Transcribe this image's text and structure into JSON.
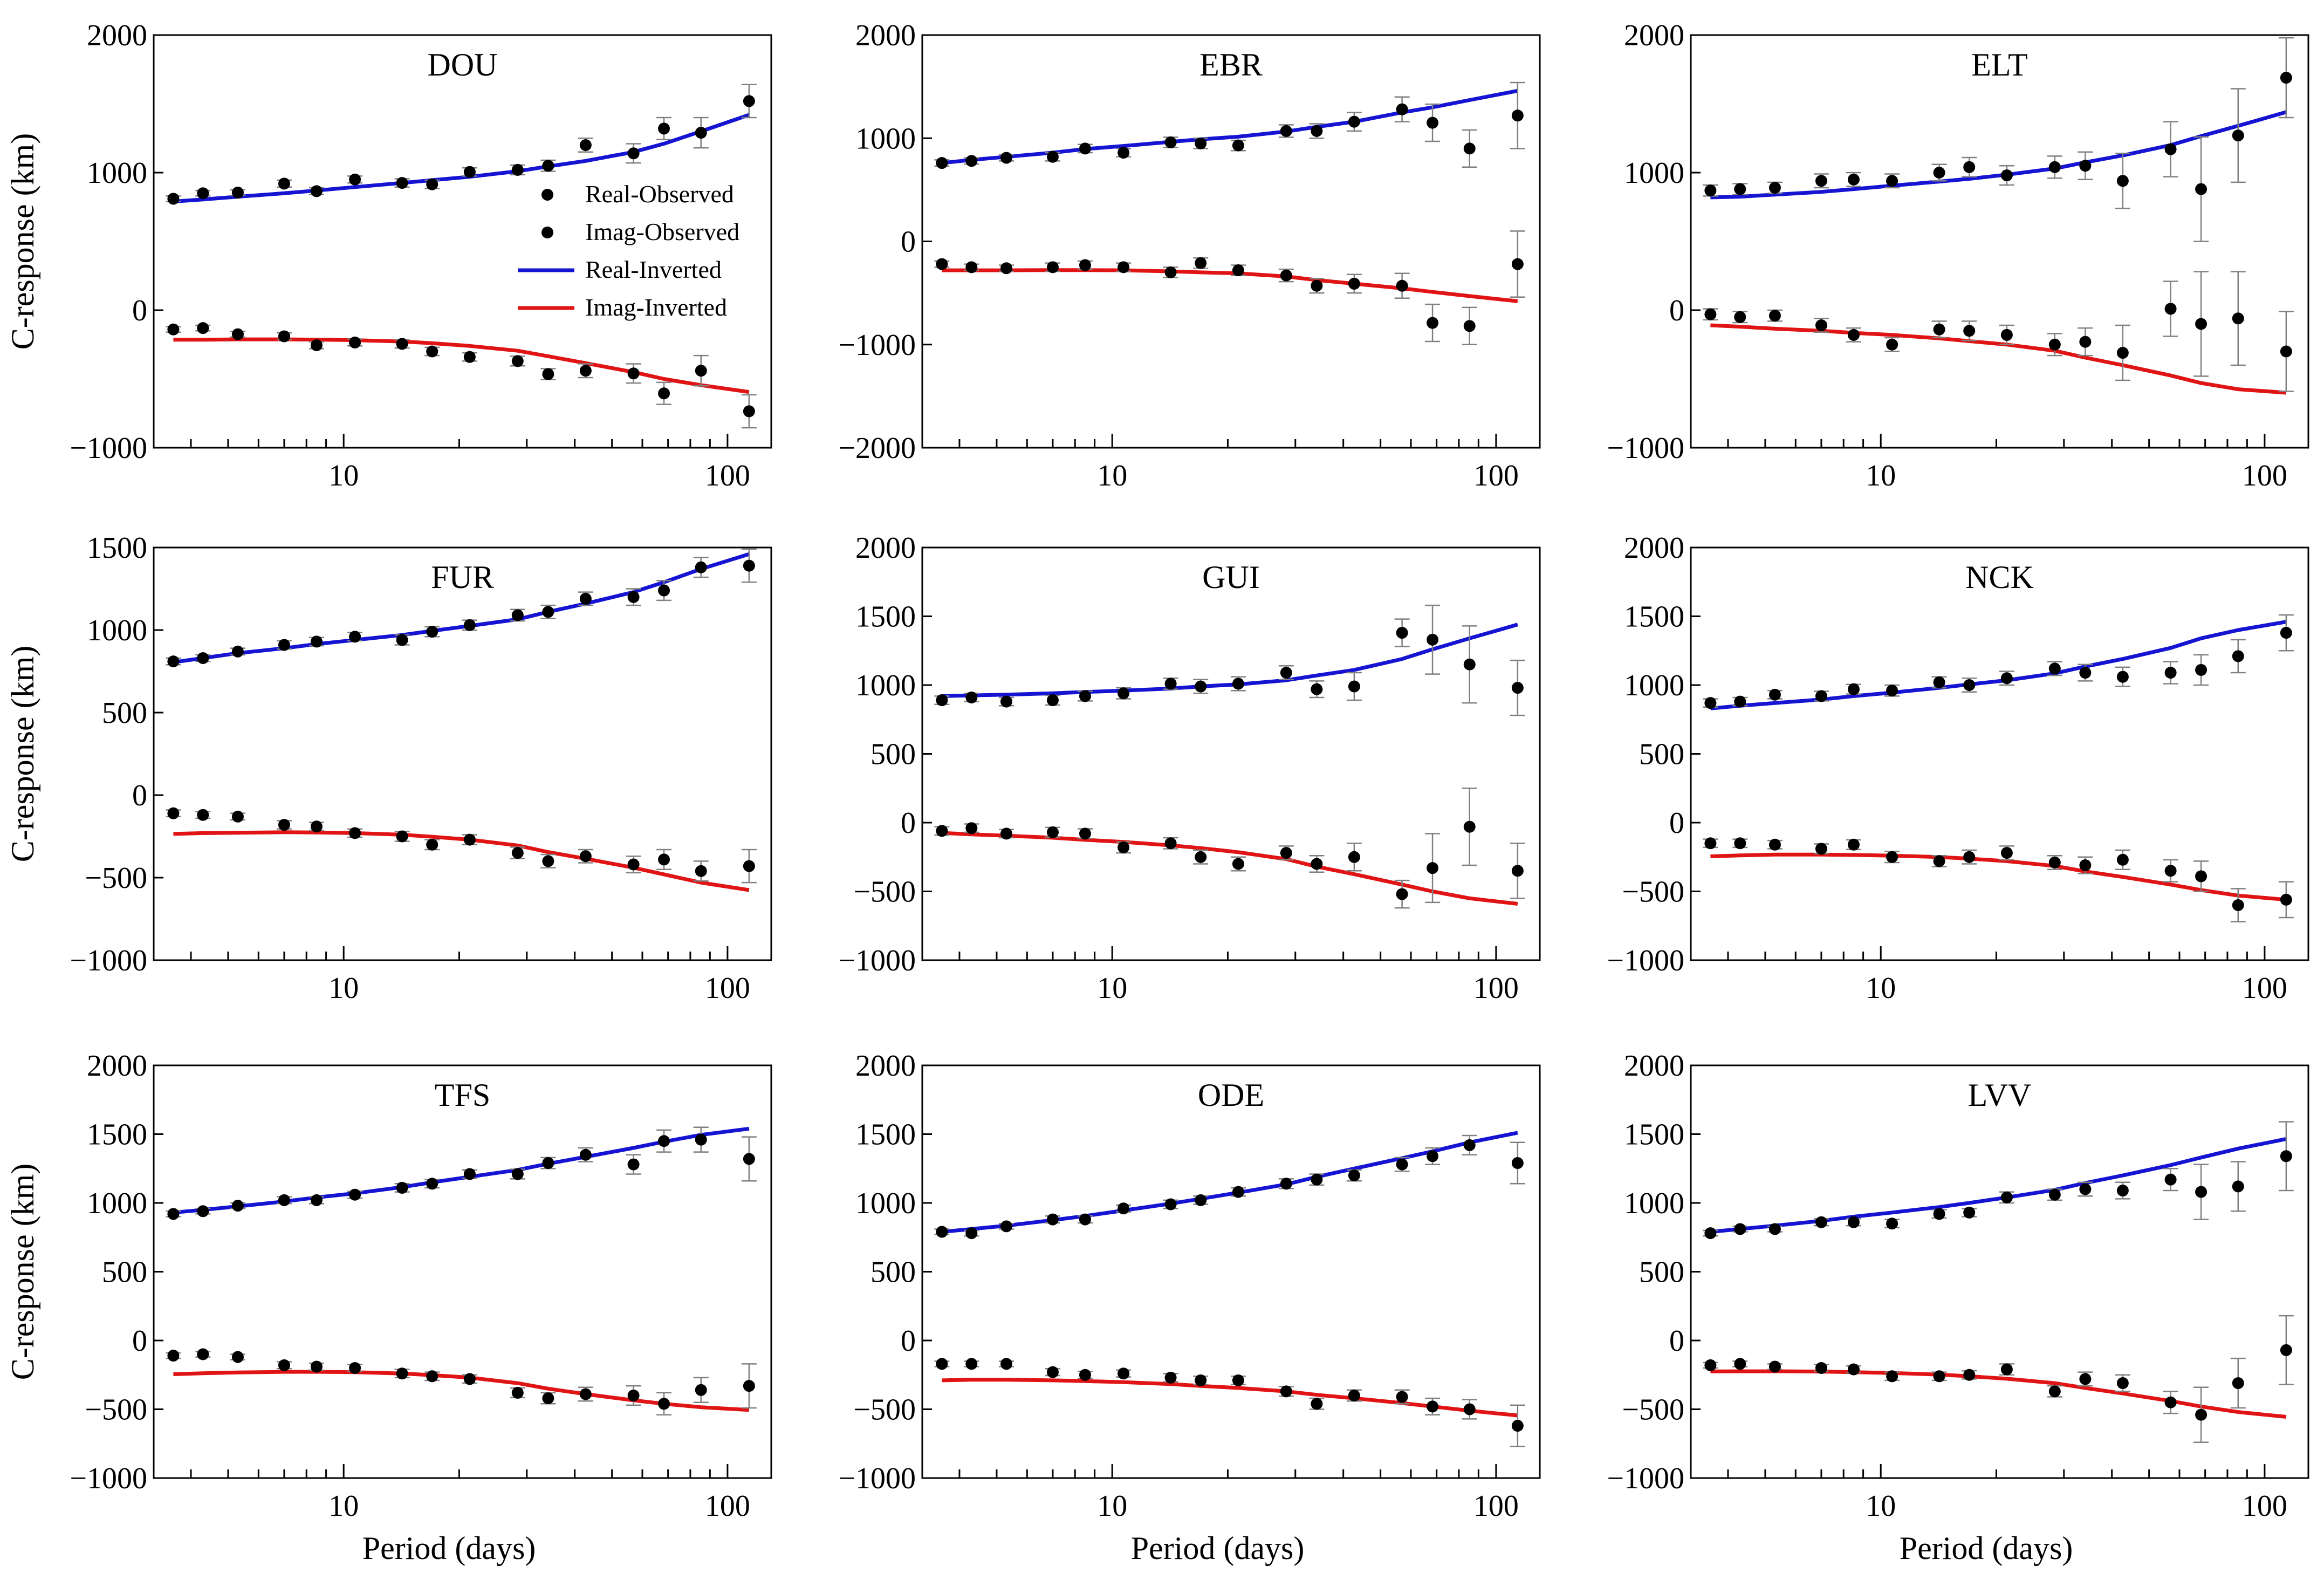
{
  "chart_data": {
    "type": "line",
    "xscale": "log",
    "xlim": [
      3.2,
      130
    ],
    "xticks": [
      10,
      100
    ],
    "xtick_labels": [
      "10",
      "100"
    ],
    "xlabel": "Period (days)",
    "ylabel": "C-response (km)",
    "periods": [
      3.6,
      4.3,
      5.3,
      7.0,
      8.5,
      10.7,
      14.2,
      17.0,
      21.3,
      28.4,
      34.1,
      42.7,
      56.9,
      68.3,
      85.3,
      113.8
    ],
    "legend": {
      "real_observed": "Real-Observed",
      "imag_observed": "Imag-Observed",
      "real_inverted": "Real-Inverted",
      "imag_inverted": "Imag-Inverted"
    },
    "colors": {
      "real_inverted": "#1414d2",
      "imag_inverted": "#e01414",
      "observed": "#000000",
      "errorbar": "#808080"
    },
    "panels": [
      {
        "station": "DOU",
        "ylim": [
          -1000,
          2000
        ],
        "yticks": [
          -1000,
          0,
          1000,
          2000
        ],
        "ytick_labels": [
          "−1000",
          "0",
          "1000",
          "2000"
        ],
        "real_obs": [
          810,
          850,
          855,
          920,
          865,
          950,
          925,
          915,
          1005,
          1020,
          1050,
          1200,
          1140,
          1320,
          1290,
          1520
        ],
        "real_err": [
          20,
          20,
          20,
          25,
          25,
          25,
          30,
          30,
          30,
          35,
          40,
          50,
          70,
          80,
          110,
          120
        ],
        "imag_obs": [
          -140,
          -130,
          -175,
          -190,
          -255,
          -235,
          -245,
          -300,
          -340,
          -370,
          -465,
          -440,
          -460,
          -605,
          -440,
          -735
        ],
        "imag_err": [
          20,
          20,
          20,
          25,
          25,
          25,
          30,
          30,
          30,
          35,
          40,
          50,
          70,
          80,
          110,
          120
        ],
        "real_inv": [
          790,
          805,
          825,
          850,
          870,
          895,
          925,
          945,
          970,
          1010,
          1045,
          1085,
          1150,
          1210,
          1300,
          1420
        ],
        "imag_inv": [
          -215,
          -215,
          -212,
          -212,
          -214,
          -218,
          -228,
          -240,
          -260,
          -295,
          -335,
          -385,
          -450,
          -500,
          -545,
          -595
        ]
      },
      {
        "station": "EBR",
        "ylim": [
          -2000,
          2000
        ],
        "yticks": [
          -2000,
          -1000,
          0,
          1000,
          2000
        ],
        "ytick_labels": [
          "−2000",
          "−1000",
          "0",
          "1000",
          "2000"
        ],
        "real_obs": [
          760,
          780,
          810,
          820,
          900,
          860,
          960,
          950,
          930,
          1070,
          1070,
          1160,
          1280,
          1150,
          900,
          1220
        ],
        "real_err": [
          30,
          30,
          30,
          40,
          40,
          40,
          50,
          50,
          50,
          60,
          70,
          90,
          120,
          180,
          180,
          320
        ],
        "imag_obs": [
          -220,
          -250,
          -260,
          -250,
          -230,
          -250,
          -300,
          -210,
          -280,
          -330,
          -430,
          -410,
          -430,
          -790,
          -820,
          -220
        ],
        "imag_err": [
          30,
          30,
          30,
          40,
          40,
          40,
          50,
          50,
          50,
          60,
          70,
          90,
          120,
          180,
          180,
          320
        ],
        "real_inv": [
          760,
          790,
          820,
          860,
          895,
          925,
          965,
          990,
          1015,
          1065,
          1110,
          1160,
          1250,
          1300,
          1370,
          1460
        ],
        "imag_inv": [
          -280,
          -280,
          -280,
          -278,
          -278,
          -280,
          -290,
          -300,
          -310,
          -340,
          -375,
          -410,
          -455,
          -490,
          -530,
          -580
        ]
      },
      {
        "station": "ELT",
        "ylim": [
          -1000,
          2000
        ],
        "yticks": [
          -1000,
          0,
          1000,
          2000
        ],
        "ytick_labels": [
          "−1000",
          "0",
          "1000",
          "2000"
        ],
        "real_obs": [
          870,
          880,
          890,
          940,
          950,
          940,
          1000,
          1040,
          980,
          1040,
          1050,
          940,
          1170,
          880,
          1270,
          1690
        ],
        "real_err": [
          40,
          40,
          40,
          50,
          50,
          50,
          60,
          70,
          70,
          80,
          100,
          200,
          200,
          380,
          340,
          290
        ],
        "imag_obs": [
          -30,
          -50,
          -40,
          -110,
          -180,
          -250,
          -140,
          -150,
          -180,
          -250,
          -230,
          -310,
          10,
          -100,
          -60,
          -300
        ],
        "imag_err": [
          40,
          40,
          40,
          50,
          50,
          50,
          60,
          70,
          70,
          80,
          100,
          200,
          200,
          380,
          340,
          290
        ],
        "real_inv": [
          820,
          825,
          840,
          860,
          880,
          905,
          935,
          955,
          985,
          1030,
          1075,
          1125,
          1200,
          1265,
          1340,
          1440
        ],
        "imag_inv": [
          -110,
          -120,
          -135,
          -150,
          -165,
          -180,
          -205,
          -225,
          -250,
          -295,
          -345,
          -400,
          -475,
          -530,
          -575,
          -600
        ]
      },
      {
        "station": "FUR",
        "ylim": [
          -1000,
          1500
        ],
        "yticks": [
          -1000,
          -500,
          0,
          500,
          1000,
          1500
        ],
        "ytick_labels": [
          "−1000",
          "−500",
          "0",
          "500",
          "1000",
          "1500"
        ],
        "real_obs": [
          810,
          830,
          870,
          910,
          930,
          960,
          940,
          990,
          1030,
          1090,
          1110,
          1190,
          1200,
          1240,
          1380,
          1390
        ],
        "real_err": [
          20,
          20,
          20,
          25,
          25,
          25,
          30,
          30,
          30,
          35,
          40,
          40,
          50,
          60,
          60,
          100
        ],
        "imag_obs": [
          -110,
          -120,
          -130,
          -180,
          -190,
          -230,
          -250,
          -300,
          -270,
          -350,
          -400,
          -370,
          -420,
          -390,
          -460,
          -430
        ],
        "imag_err": [
          20,
          20,
          20,
          25,
          25,
          25,
          30,
          30,
          30,
          35,
          40,
          40,
          50,
          60,
          60,
          100
        ],
        "real_inv": [
          805,
          830,
          860,
          890,
          915,
          940,
          970,
          995,
          1025,
          1065,
          1110,
          1160,
          1230,
          1290,
          1370,
          1460
        ],
        "imag_inv": [
          -235,
          -230,
          -228,
          -225,
          -226,
          -230,
          -240,
          -252,
          -270,
          -305,
          -345,
          -385,
          -440,
          -480,
          -530,
          -575
        ]
      },
      {
        "station": "GUI",
        "ylim": [
          -1000,
          2000
        ],
        "yticks": [
          -1000,
          -500,
          0,
          500,
          1000,
          1500,
          2000
        ],
        "ytick_labels": [
          "−1000",
          "−500",
          "0",
          "500",
          "1000",
          "1500",
          "2000"
        ],
        "real_obs": [
          890,
          910,
          880,
          890,
          920,
          940,
          1010,
          990,
          1010,
          1090,
          970,
          990,
          1380,
          1330,
          1150,
          980
        ],
        "real_err": [
          30,
          30,
          30,
          35,
          35,
          40,
          40,
          50,
          50,
          50,
          60,
          100,
          100,
          250,
          280,
          200
        ],
        "imag_obs": [
          -60,
          -40,
          -80,
          -70,
          -80,
          -180,
          -150,
          -250,
          -300,
          -220,
          -300,
          -250,
          -520,
          -330,
          -30,
          -350
        ],
        "imag_err": [
          30,
          30,
          30,
          35,
          35,
          40,
          40,
          50,
          50,
          50,
          60,
          100,
          100,
          250,
          280,
          200
        ],
        "real_inv": [
          920,
          925,
          930,
          940,
          950,
          960,
          975,
          990,
          1005,
          1035,
          1070,
          1110,
          1190,
          1260,
          1340,
          1440
        ],
        "imag_inv": [
          -75,
          -85,
          -95,
          -110,
          -125,
          -140,
          -165,
          -185,
          -215,
          -265,
          -320,
          -375,
          -450,
          -500,
          -550,
          -590
        ]
      },
      {
        "station": "NCK",
        "ylim": [
          -1000,
          2000
        ],
        "yticks": [
          -1000,
          -500,
          0,
          500,
          1000,
          1500,
          2000
        ],
        "ytick_labels": [
          "−1000",
          "−500",
          "0",
          "500",
          "1000",
          "1500",
          "2000"
        ],
        "real_obs": [
          870,
          880,
          930,
          920,
          970,
          960,
          1020,
          1000,
          1050,
          1120,
          1090,
          1060,
          1090,
          1110,
          1210,
          1380
        ],
        "real_err": [
          30,
          30,
          30,
          35,
          35,
          40,
          40,
          50,
          50,
          50,
          60,
          70,
          80,
          110,
          120,
          130
        ],
        "imag_obs": [
          -150,
          -150,
          -160,
          -190,
          -160,
          -250,
          -280,
          -250,
          -220,
          -290,
          -310,
          -270,
          -350,
          -390,
          -600,
          -560
        ],
        "imag_err": [
          30,
          30,
          30,
          35,
          35,
          40,
          40,
          50,
          50,
          50,
          60,
          70,
          80,
          110,
          120,
          130
        ],
        "real_inv": [
          830,
          850,
          870,
          895,
          920,
          945,
          980,
          1005,
          1035,
          1085,
          1135,
          1190,
          1270,
          1340,
          1400,
          1460
        ],
        "imag_inv": [
          -245,
          -238,
          -232,
          -232,
          -235,
          -240,
          -250,
          -262,
          -280,
          -315,
          -355,
          -395,
          -450,
          -490,
          -530,
          -560
        ]
      },
      {
        "station": "TFS",
        "ylim": [
          -1000,
          2000
        ],
        "yticks": [
          -1000,
          -500,
          0,
          500,
          1000,
          1500,
          2000
        ],
        "ytick_labels": [
          "−1000",
          "−500",
          "0",
          "500",
          "1000",
          "1500",
          "2000"
        ],
        "real_obs": [
          920,
          940,
          980,
          1020,
          1020,
          1060,
          1110,
          1140,
          1210,
          1210,
          1290,
          1350,
          1280,
          1450,
          1460,
          1320
        ],
        "real_err": [
          20,
          20,
          20,
          25,
          25,
          25,
          30,
          30,
          30,
          35,
          40,
          50,
          70,
          80,
          90,
          160
        ],
        "imag_obs": [
          -110,
          -100,
          -120,
          -180,
          -190,
          -200,
          -240,
          -260,
          -280,
          -380,
          -420,
          -390,
          -400,
          -460,
          -360,
          -330
        ],
        "imag_err": [
          20,
          20,
          20,
          25,
          25,
          25,
          30,
          30,
          30,
          35,
          40,
          50,
          70,
          80,
          90,
          160
        ],
        "real_inv": [
          930,
          950,
          975,
          1010,
          1040,
          1070,
          1115,
          1150,
          1190,
          1240,
          1285,
          1335,
          1400,
          1445,
          1495,
          1540
        ],
        "imag_inv": [
          -245,
          -238,
          -232,
          -228,
          -228,
          -230,
          -240,
          -252,
          -270,
          -310,
          -350,
          -390,
          -435,
          -460,
          -485,
          -505
        ]
      },
      {
        "station": "ODE",
        "ylim": [
          -1000,
          2000
        ],
        "yticks": [
          -1000,
          -500,
          0,
          500,
          1000,
          1500,
          2000
        ],
        "ytick_labels": [
          "−1000",
          "−500",
          "0",
          "500",
          "1000",
          "1500",
          "2000"
        ],
        "real_obs": [
          790,
          780,
          830,
          880,
          880,
          960,
          990,
          1020,
          1080,
          1140,
          1170,
          1200,
          1280,
          1340,
          1420,
          1290
        ],
        "real_err": [
          20,
          20,
          20,
          25,
          25,
          25,
          30,
          30,
          30,
          35,
          40,
          40,
          50,
          60,
          70,
          150
        ],
        "imag_obs": [
          -170,
          -170,
          -170,
          -230,
          -250,
          -240,
          -270,
          -290,
          -290,
          -370,
          -460,
          -400,
          -410,
          -480,
          -500,
          -620
        ],
        "imag_err": [
          20,
          20,
          20,
          25,
          25,
          25,
          30,
          30,
          30,
          35,
          40,
          40,
          50,
          60,
          70,
          150
        ],
        "real_inv": [
          790,
          810,
          835,
          875,
          905,
          945,
          995,
          1030,
          1075,
          1135,
          1190,
          1250,
          1325,
          1375,
          1440,
          1510
        ],
        "imag_inv": [
          -290,
          -285,
          -285,
          -290,
          -295,
          -303,
          -317,
          -330,
          -345,
          -370,
          -395,
          -420,
          -455,
          -480,
          -510,
          -545
        ]
      },
      {
        "station": "LVV",
        "ylim": [
          -1000,
          2000
        ],
        "yticks": [
          -1000,
          -500,
          0,
          500,
          1000,
          1500,
          2000
        ],
        "ytick_labels": [
          "−1000",
          "−500",
          "0",
          "500",
          "1000",
          "1500",
          "2000"
        ],
        "real_obs": [
          780,
          810,
          810,
          860,
          860,
          850,
          920,
          930,
          1040,
          1060,
          1100,
          1090,
          1170,
          1080,
          1120,
          1340
        ],
        "real_err": [
          20,
          20,
          20,
          25,
          25,
          30,
          30,
          30,
          40,
          40,
          50,
          60,
          80,
          200,
          180,
          250
        ],
        "imag_obs": [
          -180,
          -170,
          -190,
          -200,
          -210,
          -260,
          -260,
          -250,
          -210,
          -370,
          -280,
          -310,
          -450,
          -540,
          -310,
          -70
        ],
        "imag_err": [
          20,
          20,
          20,
          25,
          25,
          30,
          30,
          30,
          40,
          40,
          50,
          60,
          80,
          200,
          180,
          250
        ],
        "real_inv": [
          790,
          810,
          835,
          870,
          900,
          930,
          970,
          1000,
          1040,
          1095,
          1145,
          1200,
          1275,
          1330,
          1395,
          1465
        ],
        "imag_inv": [
          -225,
          -224,
          -224,
          -226,
          -230,
          -236,
          -248,
          -260,
          -278,
          -310,
          -345,
          -385,
          -440,
          -480,
          -520,
          -555
        ]
      }
    ]
  }
}
